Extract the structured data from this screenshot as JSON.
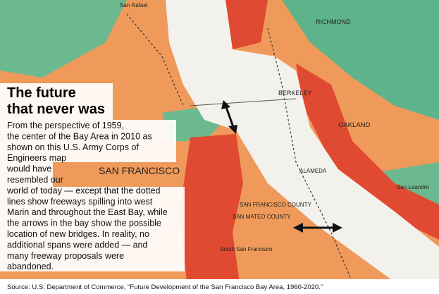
{
  "article": {
    "title_lines": [
      "The future",
      "that never was"
    ],
    "body_lines": [
      "From the perspective of 1959,",
      "the center of the Bay Area in 2010 as",
      "shown on this U.S. Army Corps of",
      "Engineers map",
      "would have",
      "resembled our",
      "world of today — except that the dotted",
      "lines show freeways spilling into west",
      "Marin and throughout the East Bay, while",
      "the arrows in the bay show the possible",
      "location of new bridges. In reality, no",
      "additional spans were added — and",
      "many freeway proposals were",
      "abandoned."
    ],
    "source": "Source: U.S. Department of Commerce, \"Future Development of the San Francisco Bay Area, 1960-2020.\""
  },
  "map": {
    "labels": [
      "SAN FRANCISCO",
      "RICHMOND",
      "BERKELEY",
      "OAKLAND",
      "ALAMEDA",
      "San Leandro",
      "South San Francisco",
      "SAN FRANCISCO COUNTY",
      "SAN MATEO COUNTY",
      "San Rafael"
    ]
  }
}
